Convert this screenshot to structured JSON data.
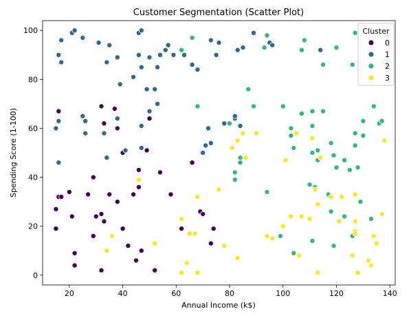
{
  "chart_data": {
    "type": "scatter",
    "title": "Customer Segmentation (Scatter Plot)",
    "xlabel": "Annual Income (k$)",
    "ylabel": "Spending Score (1-100)",
    "xlim": [
      10,
      142
    ],
    "ylim": [
      -4,
      104
    ],
    "x_ticks": [
      20,
      40,
      60,
      80,
      100,
      120,
      140
    ],
    "y_ticks": [
      0,
      20,
      40,
      60,
      80,
      100
    ],
    "grid": false,
    "legend": {
      "title": "Cluster",
      "placement": "top-right"
    },
    "series": [
      {
        "name": "0",
        "color": "#440154",
        "points": [
          [
            15,
            27
          ],
          [
            15,
            19
          ],
          [
            16,
            32
          ],
          [
            16,
            67
          ],
          [
            17,
            32
          ],
          [
            20,
            34
          ],
          [
            21,
            24
          ],
          [
            22,
            9
          ],
          [
            22,
            4
          ],
          [
            27,
            33
          ],
          [
            29,
            40
          ],
          [
            29,
            16
          ],
          [
            30,
            24
          ],
          [
            32,
            69
          ],
          [
            32,
            25
          ],
          [
            32,
            2
          ],
          [
            33,
            62
          ],
          [
            33,
            22
          ],
          [
            35,
            33
          ],
          [
            37,
            68
          ],
          [
            38,
            60
          ],
          [
            38,
            30
          ],
          [
            40,
            19
          ],
          [
            40,
            50
          ],
          [
            42,
            12
          ],
          [
            44,
            33
          ],
          [
            45,
            6
          ],
          [
            46,
            43
          ],
          [
            46,
            36
          ],
          [
            47,
            10
          ],
          [
            49,
            51
          ],
          [
            50,
            64
          ],
          [
            52,
            2
          ],
          [
            54,
            42
          ],
          [
            58,
            33
          ],
          [
            62,
            19
          ],
          [
            66,
            46
          ],
          [
            69,
            26
          ],
          [
            70,
            25
          ],
          [
            73,
            13
          ],
          [
            74,
            19
          ]
        ]
      },
      {
        "name": "1",
        "color": "#30688e",
        "points": [
          [
            15,
            60
          ],
          [
            16,
            90
          ],
          [
            16,
            63
          ],
          [
            16,
            46
          ],
          [
            17,
            96
          ],
          [
            17,
            87
          ],
          [
            21,
            99
          ],
          [
            22,
            100
          ],
          [
            25,
            97
          ],
          [
            25,
            65
          ],
          [
            26,
            63
          ],
          [
            26,
            58
          ],
          [
            31,
            95
          ],
          [
            33,
            58
          ],
          [
            34,
            87
          ],
          [
            34,
            48
          ],
          [
            35,
            94
          ],
          [
            38,
            89
          ],
          [
            38,
            64
          ],
          [
            39,
            78
          ],
          [
            41,
            51
          ],
          [
            44,
            81
          ],
          [
            46,
            99
          ],
          [
            46,
            90
          ],
          [
            47,
            100
          ],
          [
            47,
            85
          ],
          [
            47,
            61
          ],
          [
            47,
            52
          ],
          [
            49,
            76
          ],
          [
            50,
            89
          ],
          [
            50,
            67
          ],
          [
            52,
            76
          ],
          [
            53,
            85
          ],
          [
            53,
            70
          ],
          [
            54,
            90
          ],
          [
            56,
            92
          ],
          [
            57,
            94
          ],
          [
            59,
            90
          ],
          [
            63,
            90
          ],
          [
            66,
            86
          ],
          [
            68,
            84
          ],
          [
            70,
            50
          ],
          [
            71,
            53
          ],
          [
            72,
            60
          ],
          [
            73,
            96
          ],
          [
            73,
            54
          ],
          [
            75,
            90
          ],
          [
            76,
            95
          ],
          [
            78,
            62
          ],
          [
            82,
            64
          ],
          [
            83,
            92
          ],
          [
            82,
            65
          ],
          [
            84,
            61
          ],
          [
            85,
            93
          ],
          [
            89,
            99
          ],
          [
            95,
            95
          ],
          [
            96,
            94
          ],
          [
            114,
            92
          ]
        ]
      },
      {
        "name": "2",
        "color": "#35b779",
        "points": [
          [
            62,
            92
          ],
          [
            66,
            97
          ],
          [
            68,
            69
          ],
          [
            80,
            62
          ],
          [
            82,
            39
          ],
          [
            82,
            42
          ],
          [
            84,
            46
          ],
          [
            84,
            48
          ],
          [
            87,
            76
          ],
          [
            89,
            69
          ],
          [
            93,
            93
          ],
          [
            94,
            98
          ],
          [
            94,
            34
          ],
          [
            99,
            16
          ],
          [
            100,
            69
          ],
          [
            103,
            24
          ],
          [
            103,
            60
          ],
          [
            103,
            57
          ],
          [
            104,
            52
          ],
          [
            104,
            9
          ],
          [
            107,
            92
          ],
          [
            107,
            66
          ],
          [
            108,
            96
          ],
          [
            110,
            37
          ],
          [
            111,
            67
          ],
          [
            111,
            61
          ],
          [
            111,
            14
          ],
          [
            111,
            50
          ],
          [
            112,
            36
          ],
          [
            113,
            51
          ],
          [
            113,
            47
          ],
          [
            115,
            67
          ],
          [
            115,
            86
          ],
          [
            117,
            33
          ],
          [
            118,
            54
          ],
          [
            118,
            26
          ],
          [
            119,
            49
          ],
          [
            119,
            12
          ],
          [
            120,
            93
          ],
          [
            120,
            44
          ],
          [
            123,
            24
          ],
          [
            123,
            47
          ],
          [
            125,
            43
          ],
          [
            126,
            86
          ],
          [
            126,
            16
          ],
          [
            127,
            99
          ],
          [
            127,
            58
          ],
          [
            127,
            53
          ],
          [
            128,
            44
          ],
          [
            129,
            30
          ],
          [
            130,
            63
          ],
          [
            130,
            57
          ],
          [
            133,
            23
          ],
          [
            134,
            69
          ],
          [
            136,
            62
          ],
          [
            137,
            63
          ],
          [
            138,
            87
          ],
          [
            139,
            87
          ]
        ]
      },
      {
        "name": "3",
        "color": "#fde725",
        "points": [
          [
            34,
            10
          ],
          [
            36,
            16
          ],
          [
            46,
            39
          ],
          [
            52,
            13
          ],
          [
            62,
            23
          ],
          [
            62,
            1
          ],
          [
            64,
            5
          ],
          [
            65,
            17
          ],
          [
            67,
            17
          ],
          [
            68,
            32
          ],
          [
            68,
            1
          ],
          [
            76,
            35
          ],
          [
            78,
            12
          ],
          [
            81,
            52
          ],
          [
            83,
            7
          ],
          [
            83,
            55
          ],
          [
            85,
            58
          ],
          [
            86,
            48
          ],
          [
            90,
            58
          ],
          [
            94,
            16
          ],
          [
            96,
            15
          ],
          [
            100,
            20
          ],
          [
            101,
            47
          ],
          [
            103,
            24
          ],
          [
            105,
            58
          ],
          [
            106,
            8
          ],
          [
            107,
            24
          ],
          [
            110,
            23
          ],
          [
            111,
            56
          ],
          [
            112,
            35
          ],
          [
            113,
            29
          ],
          [
            113,
            1
          ],
          [
            114,
            48
          ],
          [
            118,
            32
          ],
          [
            121,
            22
          ],
          [
            122,
            32
          ],
          [
            126,
            8
          ],
          [
            127,
            18
          ],
          [
            127,
            17
          ],
          [
            127,
            33
          ],
          [
            127,
            22
          ],
          [
            128,
            1
          ],
          [
            132,
            6
          ],
          [
            133,
            4
          ],
          [
            134,
            16
          ],
          [
            135,
            13
          ],
          [
            137,
            25
          ],
          [
            138,
            55
          ]
        ]
      }
    ]
  }
}
